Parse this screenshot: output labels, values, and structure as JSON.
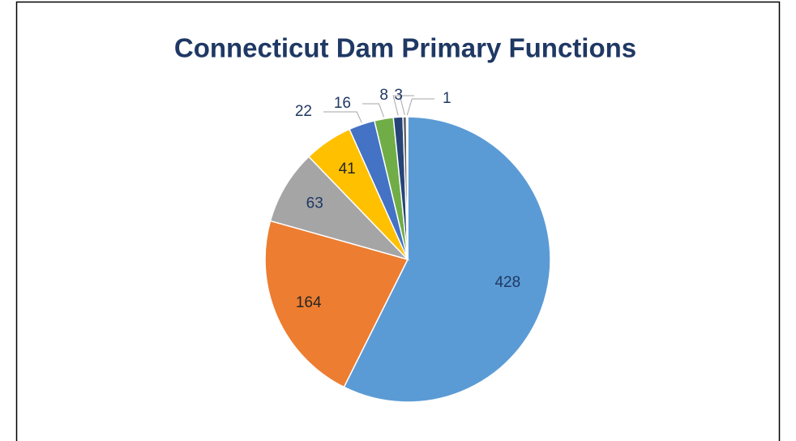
{
  "chart_data": {
    "type": "pie",
    "title": "Connecticut Dam Primary Functions",
    "values": [
      428,
      164,
      63,
      41,
      22,
      16,
      8,
      3,
      1
    ],
    "colors": [
      "#5b9bd5",
      "#ed7d31",
      "#a5a5a5",
      "#ffc000",
      "#4472c4",
      "#70ad47",
      "#264478",
      "#636363",
      "#9e480e"
    ]
  }
}
